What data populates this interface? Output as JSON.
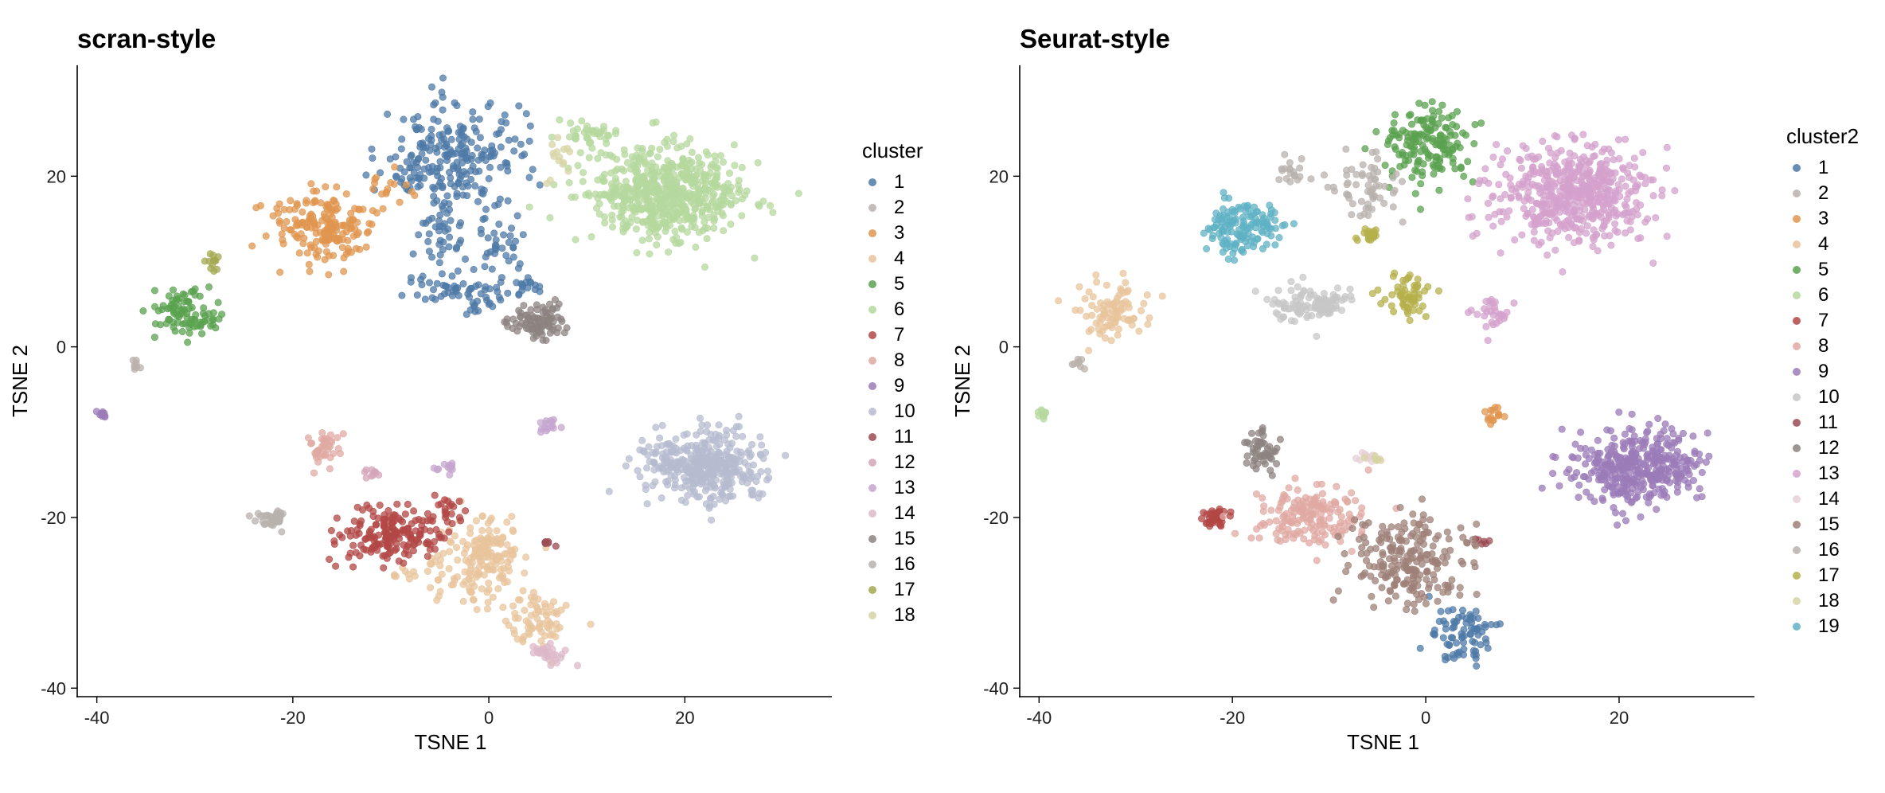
{
  "chart_data": [
    {
      "type": "scatter",
      "title": "scran-style",
      "xlabel": "TSNE 1",
      "ylabel": "TSNE 2",
      "xlim": [
        -42,
        35
      ],
      "ylim": [
        -41,
        33
      ],
      "xticks": [
        -40,
        -20,
        0,
        20
      ],
      "yticks": [
        -40,
        -20,
        0,
        20
      ],
      "grid": false,
      "legend_position": "right",
      "legend_title": "cluster",
      "series": [
        {
          "name": "1",
          "color": "#4e79a7",
          "blobs": [
            [
              -3,
              22,
              6,
              6,
              210
            ],
            [
              1,
              12,
              3,
              4,
              40
            ],
            [
              -5,
              13,
              2,
              3,
              30
            ],
            [
              -2,
              6,
              5,
              2,
              40
            ],
            [
              -6,
              7,
              3,
              2,
              20
            ],
            [
              4,
              7,
              2,
              2,
              15
            ],
            [
              -8,
              21,
              3,
              3,
              30
            ]
          ]
        },
        {
          "name": "2",
          "color": "#bab0ac",
          "blobs": [
            [
              -36,
              -2,
              0.5,
              0.5,
              8
            ]
          ]
        },
        {
          "name": "3",
          "color": "#e0954f",
          "blobs": [
            [
              -17,
              14,
              5,
              4,
              180
            ],
            [
              -10,
              19,
              2,
              2,
              15
            ]
          ]
        },
        {
          "name": "4",
          "color": "#e8c49c",
          "blobs": [
            [
              -1,
              -25,
              4,
              5,
              180
            ],
            [
              5,
              -32,
              3,
              3,
              70
            ],
            [
              -8,
              -27,
              2,
              2,
              10
            ]
          ]
        },
        {
          "name": "5",
          "color": "#59a14f",
          "blobs": [
            [
              -31,
              4,
              3,
              2.5,
              90
            ]
          ]
        },
        {
          "name": "6",
          "color": "#b5d89e",
          "blobs": [
            [
              18,
              18,
              7,
              5,
              600
            ],
            [
              10,
              25,
              3,
              2,
              40
            ]
          ]
        },
        {
          "name": "7",
          "color": "#b24745",
          "blobs": [
            [
              -10,
              -22,
              5,
              3,
              180
            ],
            [
              -4,
              -19,
              2,
              2,
              20
            ]
          ]
        },
        {
          "name": "8",
          "color": "#e0a9a3",
          "blobs": [
            [
              -17,
              -12,
              1.5,
              2,
              40
            ]
          ]
        },
        {
          "name": "9",
          "color": "#9b7bb8",
          "blobs": [
            [
              -39.5,
              -8,
              0.5,
              0.5,
              10
            ]
          ]
        },
        {
          "name": "10",
          "color": "#b6bbcf",
          "blobs": [
            [
              22,
              -14,
              6,
              4,
              380
            ]
          ]
        },
        {
          "name": "11",
          "color": "#9c4b53",
          "blobs": [
            [
              6,
              -23,
              0.7,
              0.5,
              6
            ]
          ]
        },
        {
          "name": "12",
          "color": "#d4a6b8",
          "blobs": [
            [
              -12,
              -15,
              1.5,
              1,
              10
            ]
          ]
        },
        {
          "name": "13",
          "color": "#c5a5cf",
          "blobs": [
            [
              -4,
              -14,
              1,
              0.8,
              12
            ],
            [
              6,
              -9,
              1.5,
              1,
              15
            ]
          ]
        },
        {
          "name": "14",
          "color": "#ddb8c8",
          "blobs": [
            [
              6,
              -36,
              1.5,
              1,
              30
            ]
          ]
        },
        {
          "name": "15",
          "color": "#8c8380",
          "blobs": [
            [
              5,
              3,
              2.5,
              2,
              90
            ]
          ]
        },
        {
          "name": "16",
          "color": "#b8b2ad",
          "blobs": [
            [
              -22,
              -20,
              1.5,
              1,
              40
            ]
          ]
        },
        {
          "name": "17",
          "color": "#a3a851",
          "blobs": [
            [
              -28,
              10,
              1,
              1,
              12
            ]
          ]
        },
        {
          "name": "18",
          "color": "#d7d4a4",
          "blobs": [
            [
              7,
              22,
              2,
              2,
              15
            ]
          ]
        }
      ]
    },
    {
      "type": "scatter",
      "title": "Seurat-style",
      "xlabel": "TSNE 1",
      "ylabel": "TSNE 2",
      "xlim": [
        -42,
        34
      ],
      "ylim": [
        -41,
        33
      ],
      "xticks": [
        -40,
        -20,
        0,
        20
      ],
      "yticks": [
        -40,
        -20,
        0,
        20
      ],
      "grid": false,
      "legend_position": "right",
      "legend_title": "cluster2",
      "series": [
        {
          "name": "1",
          "color": "#4e79a7",
          "blobs": [
            [
              4,
              -34,
              3,
              3,
              80
            ]
          ]
        },
        {
          "name": "2",
          "color": "#bab0ac",
          "blobs": [
            [
              -36,
              -2,
              0.5,
              0.5,
              8
            ]
          ]
        },
        {
          "name": "3",
          "color": "#e0954f",
          "blobs": [
            [
              7,
              -8,
              0.8,
              1,
              15
            ]
          ]
        },
        {
          "name": "4",
          "color": "#e8c49c",
          "blobs": [
            [
              -32,
              4,
              3,
              3,
              90
            ]
          ]
        },
        {
          "name": "5",
          "color": "#59a14f",
          "blobs": [
            [
              0,
              24,
              4,
              4,
              160
            ]
          ]
        },
        {
          "name": "6",
          "color": "#b5d89e",
          "blobs": [
            [
              -39.5,
              -8,
              0.5,
              0.5,
              10
            ]
          ]
        },
        {
          "name": "7",
          "color": "#b24745",
          "blobs": [
            [
              -22,
              -20,
              1.5,
              1,
              40
            ]
          ]
        },
        {
          "name": "8",
          "color": "#e0a9a3",
          "blobs": [
            [
              -12,
              -20,
              5,
              3,
              170
            ]
          ]
        },
        {
          "name": "9",
          "color": "#9b7bb8",
          "blobs": [
            [
              22,
              -14,
              6,
              4,
              380
            ]
          ]
        },
        {
          "name": "10",
          "color": "#c7c7c7",
          "blobs": [
            [
              -12,
              5,
              4,
              2,
              110
            ]
          ]
        },
        {
          "name": "11",
          "color": "#9c4b53",
          "blobs": [
            [
              6,
              -23,
              0.7,
              0.5,
              6
            ]
          ]
        },
        {
          "name": "12",
          "color": "#8c8380",
          "blobs": [
            [
              -17,
              -12,
              1.5,
              2,
              50
            ]
          ]
        },
        {
          "name": "13",
          "color": "#d4a1cc",
          "blobs": [
            [
              15,
              18,
              7,
              5,
              520
            ],
            [
              7,
              4,
              2,
              2,
              30
            ]
          ]
        },
        {
          "name": "14",
          "color": "#e6d0d8",
          "blobs": [
            [
              -6,
              -13,
              1.5,
              0.6,
              10
            ]
          ]
        },
        {
          "name": "15",
          "color": "#9d8078",
          "blobs": [
            [
              -2,
              -25,
              5,
              5,
              220
            ]
          ]
        },
        {
          "name": "16",
          "color": "#b8b2ad",
          "blobs": [
            [
              -6,
              19,
              3,
              3,
              60
            ],
            [
              -14,
              20,
              2,
              2,
              20
            ]
          ]
        },
        {
          "name": "17",
          "color": "#b5b04b",
          "blobs": [
            [
              -2,
              6,
              2,
              2,
              60
            ],
            [
              -6,
              13,
              1,
              1,
              20
            ]
          ]
        },
        {
          "name": "18",
          "color": "#d7d4a4",
          "blobs": [
            [
              -5,
              -13,
              1,
              0.6,
              8
            ]
          ]
        },
        {
          "name": "19",
          "color": "#5fb1c4",
          "blobs": [
            [
              -19,
              14,
              3.5,
              3,
              140
            ]
          ]
        }
      ]
    }
  ]
}
